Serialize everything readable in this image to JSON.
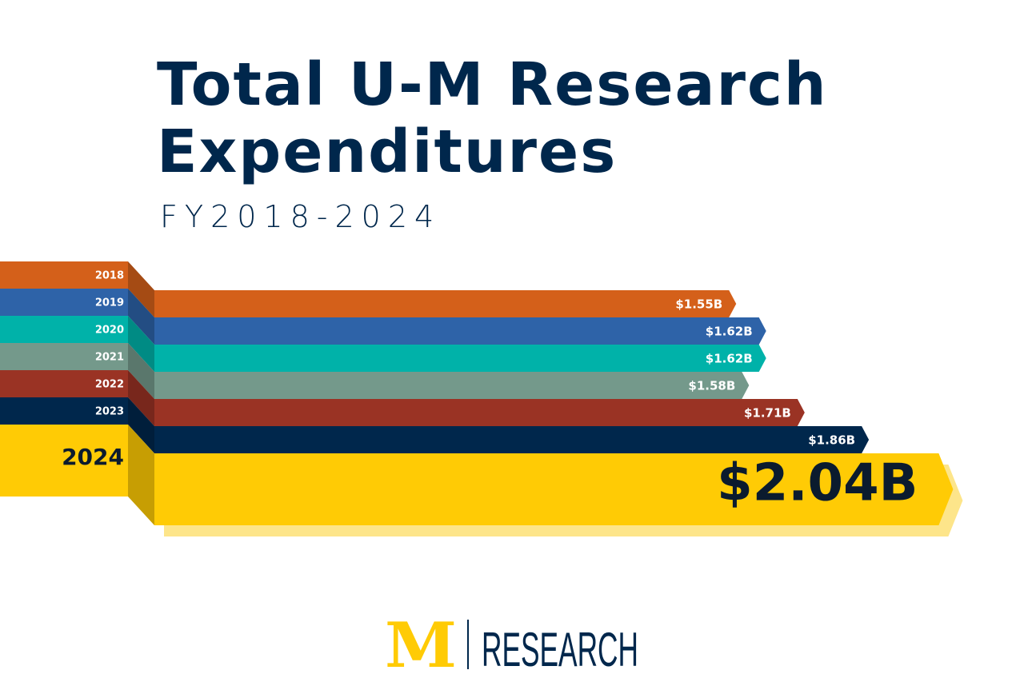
{
  "chart_data": {
    "type": "bar",
    "title": [
      "Total U-M Research",
      "Expenditures"
    ],
    "subtitle": "FY2018-2024",
    "categories": [
      "2018",
      "2019",
      "2020",
      "2021",
      "2022",
      "2023",
      "2024"
    ],
    "values": [
      1.55,
      1.62,
      1.62,
      1.58,
      1.71,
      1.86,
      2.04
    ],
    "value_labels": [
      "$1.55B",
      "$1.62B",
      "$1.62B",
      "$1.58B",
      "$1.71B",
      "$1.86B",
      "$2.04B"
    ],
    "colors": [
      "#d4601a",
      "#2e63a8",
      "#00b2a9",
      "#74998b",
      "#9a3324",
      "#00274c",
      "#ffcb05"
    ],
    "logo_mark": "M",
    "logo_text": "RESEARCH"
  }
}
